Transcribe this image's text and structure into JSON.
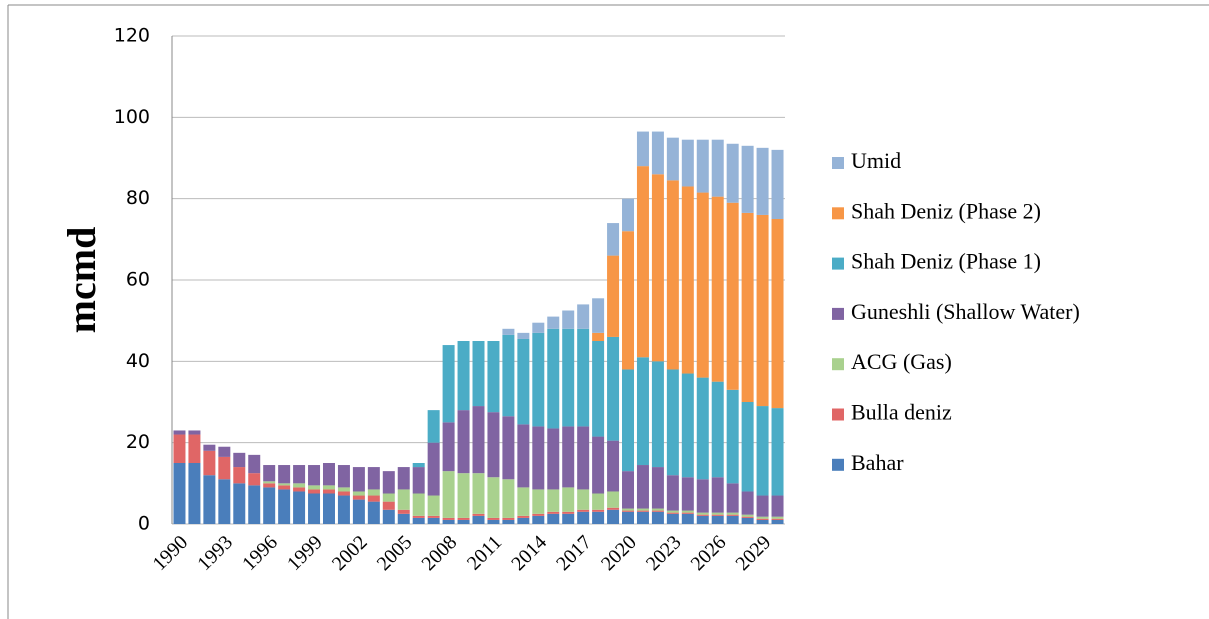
{
  "chart_data": {
    "type": "stacked_bar",
    "ylabel": "mcmd",
    "categories": [
      "1990",
      null,
      null,
      "1993",
      null,
      null,
      "1996",
      null,
      null,
      "1999",
      null,
      null,
      "2002",
      null,
      null,
      "2005",
      null,
      null,
      "2008",
      null,
      null,
      "2011",
      null,
      null,
      "2014",
      null,
      null,
      "2017",
      null,
      null,
      "2020",
      null,
      null,
      "2023",
      null,
      null,
      "2026",
      null,
      null,
      "2029",
      null
    ],
    "ylim": [
      0,
      120
    ],
    "yticks": [
      0,
      20,
      40,
      60,
      80,
      100,
      120
    ],
    "grid": true,
    "legend": "right",
    "series": [
      {
        "name": "Bahar",
        "color": "#4a7ebb",
        "values": [
          15,
          15,
          12,
          11,
          10,
          9.5,
          9,
          8.5,
          8,
          7.5,
          7.5,
          7,
          6,
          5.5,
          3.5,
          2.5,
          1.5,
          1.5,
          1,
          1,
          2,
          1,
          1,
          1.5,
          2,
          2.5,
          2.5,
          3,
          3,
          3.5,
          3,
          3,
          3,
          2.5,
          2.5,
          2,
          2,
          2,
          1.5,
          1,
          1
        ]
      },
      {
        "name": "Bulla deniz",
        "color": "#e06666",
        "values": [
          7,
          7,
          6,
          5.5,
          4,
          3,
          1,
          1,
          1,
          1,
          1,
          1,
          1,
          1.5,
          2,
          1,
          0.5,
          0.5,
          0.5,
          0.5,
          0.5,
          0.5,
          0.5,
          0.5,
          0.5,
          0.5,
          0.5,
          0.5,
          0.5,
          0.5,
          0.3,
          0.3,
          0.3,
          0.3,
          0.3,
          0.3,
          0.3,
          0.3,
          0.3,
          0.3,
          0.3
        ]
      },
      {
        "name": "ACG (Gas)",
        "color": "#a9d18e",
        "values": [
          0,
          0,
          0,
          0,
          0,
          0,
          0.5,
          0.5,
          1,
          1,
          1,
          1,
          1,
          1.5,
          2,
          5,
          5.5,
          5,
          11.5,
          11,
          10,
          10,
          9.5,
          7,
          6,
          5.5,
          6,
          5,
          4,
          4,
          0.5,
          0.5,
          0.5,
          0.5,
          0.5,
          0.5,
          0.5,
          0.5,
          0.5,
          0.5,
          0.5
        ]
      },
      {
        "name": "Guneshli (Shallow Water)",
        "color": "#8064a2",
        "values": [
          1,
          1,
          1.5,
          2.5,
          3.5,
          4.5,
          4,
          4.5,
          4.5,
          5,
          5.5,
          5.5,
          6,
          5.5,
          5.5,
          5.5,
          6.5,
          13,
          12,
          15.5,
          16.5,
          16,
          15.5,
          15.5,
          15.5,
          15,
          15,
          15.5,
          14,
          12.5,
          9.2,
          10.7,
          10.2,
          8.7,
          8.2,
          8.2,
          8.7,
          7.2,
          5.7,
          5.2,
          5.2
        ]
      },
      {
        "name": "Shah Deniz (Phase 1)",
        "color": "#4bacc6",
        "values": [
          0,
          0,
          0,
          0,
          0,
          0,
          0,
          0,
          0,
          0,
          0,
          0,
          0,
          0,
          0,
          0,
          1,
          8,
          19,
          17,
          16,
          17.5,
          20,
          21,
          23,
          24.5,
          24,
          24,
          23.5,
          25.5,
          25,
          26.5,
          26,
          26,
          25.5,
          25,
          23.5,
          23,
          22,
          22,
          21.5
        ]
      },
      {
        "name": "Shah Deniz (Phase 2)",
        "color": "#f79646",
        "values": [
          0,
          0,
          0,
          0,
          0,
          0,
          0,
          0,
          0,
          0,
          0,
          0,
          0,
          0,
          0,
          0,
          0,
          0,
          0,
          0,
          0,
          0,
          0,
          0,
          0,
          0,
          0,
          0,
          2,
          20,
          34,
          47,
          46,
          46.5,
          46,
          45.5,
          45.5,
          46,
          46.5,
          47,
          46.5
        ]
      },
      {
        "name": "Umid",
        "color": "#95b3d7",
        "values": [
          0,
          0,
          0,
          0,
          0,
          0,
          0,
          0,
          0,
          0,
          0,
          0,
          0,
          0,
          0,
          0,
          0,
          0,
          0,
          0,
          0,
          0,
          1.5,
          1.5,
          2.5,
          3,
          4.5,
          6,
          8.5,
          8,
          8,
          8.5,
          10.5,
          10.5,
          11.5,
          13,
          14,
          14.5,
          16.5,
          16.5,
          17
        ]
      }
    ]
  }
}
